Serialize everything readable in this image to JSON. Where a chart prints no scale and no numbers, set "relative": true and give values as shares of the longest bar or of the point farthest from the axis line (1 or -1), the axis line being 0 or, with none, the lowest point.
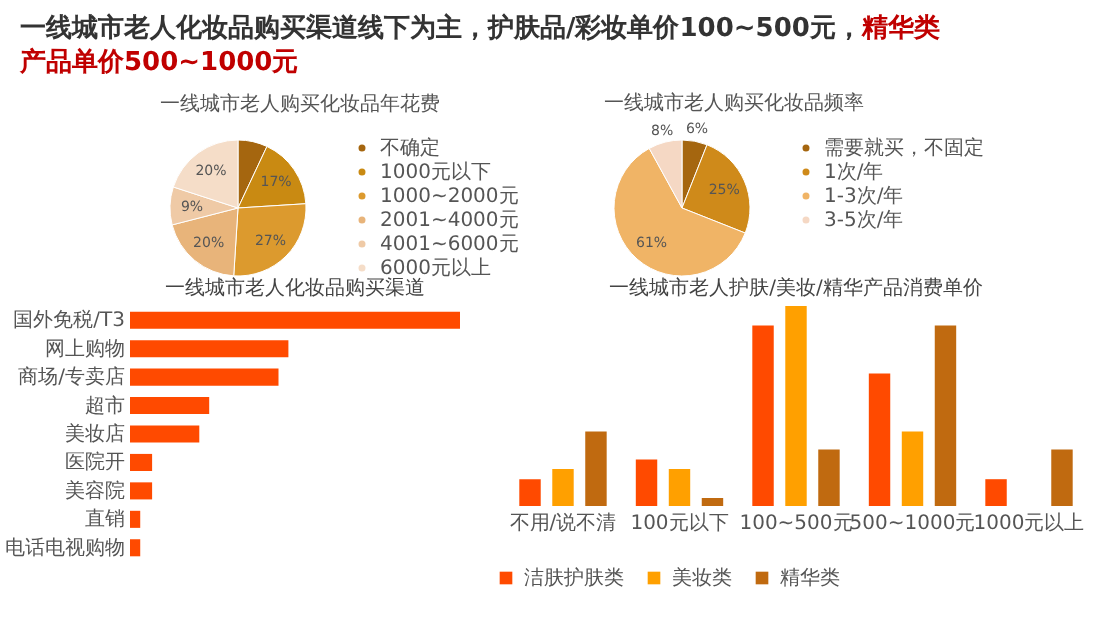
{
  "chart_data": [
    {
      "type": "other",
      "title": "一线城市老人化妆品购买渠道线下为主，护肤品/彩妆单价100~500元，",
      "subtitle": "精华类产品单价500~1000元"
    },
    {
      "type": "pie",
      "title": "一线城市老人购买化妆品年花费",
      "categories": [
        "不确定",
        "1000元以下",
        "1000~2000元",
        "2001~4000元",
        "4001~6000元",
        "6000元以上"
      ],
      "values": [
        7,
        17,
        27,
        20,
        9,
        20
      ],
      "value_labels": [
        null,
        "17%",
        "27%",
        "20%",
        "9%",
        "20%"
      ],
      "colors": [
        "#a5660f",
        "#c98a12",
        "#dc9a2e",
        "#e8b47a",
        "#efcaa6",
        "#f5ddc8"
      ],
      "legend": "right"
    },
    {
      "type": "pie",
      "title": "一线城市老人购买化妆品频率",
      "categories": [
        "需要就买，不固定",
        "1次/年",
        "1-3次/年",
        "3-5次/年"
      ],
      "values": [
        6,
        25,
        61,
        8
      ],
      "value_labels": [
        "6%",
        "25%",
        "61%",
        "8%"
      ],
      "colors": [
        "#a5660f",
        "#cf8a1a",
        "#f0b466",
        "#f5d8c4"
      ],
      "legend": "right"
    },
    {
      "type": "bar",
      "title": "一线城市老人化妆品购买渠道",
      "orientation": "horizontal",
      "relative": true,
      "categories": [
        "国外免税/T3",
        "网上购物",
        "商场/专卖店",
        "超市",
        "美妆店",
        "医院开",
        "美容院",
        "直销",
        "电话电视购物"
      ],
      "values": [
        1,
        0.48,
        0.45,
        0.24,
        0.21,
        0.067,
        0.067,
        0.031,
        0.031
      ],
      "color": "#ff4a00"
    },
    {
      "type": "bar",
      "title": "一线城市老人护肤/美妆/精华产品消费单价",
      "relative": true,
      "legend": "bottom",
      "categories": [
        "不用/说不清",
        "100元以下",
        "100~500元",
        "500~1000元",
        "1000元以上"
      ],
      "series": [
        {
          "name": "洁肤护肤类",
          "color": "#ff4a00",
          "values": [
            0.134,
            0.232,
            0.902,
            0.663,
            0.134
          ]
        },
        {
          "name": "美妆类",
          "color": "#ffa000",
          "values": [
            0.185,
            0.185,
            1,
            0.373,
            0
          ]
        },
        {
          "name": "精华类",
          "color": "#c06a10",
          "values": [
            0.373,
            0.04,
            0.283,
            0.902,
            0.283
          ]
        }
      ]
    }
  ]
}
